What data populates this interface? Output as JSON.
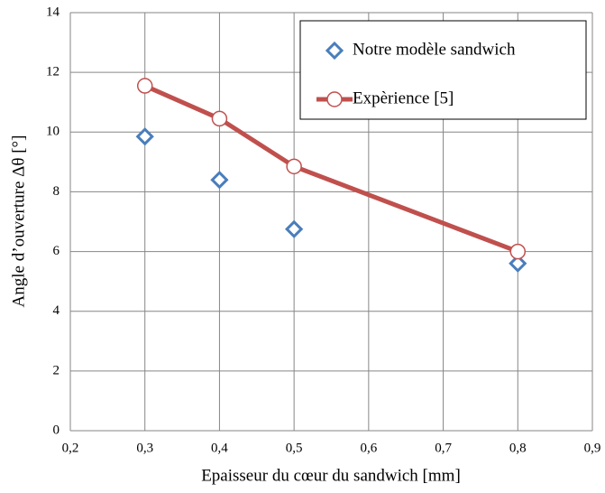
{
  "chart_data": {
    "type": "scatter",
    "x_label": "Epaisseur du cœur du sandwich  [mm]",
    "y_label": "Angle d’ouverture Δθ [°]",
    "x": [
      0.3,
      0.4,
      0.5,
      0.8
    ],
    "series": [
      {
        "name": "Notre modèle sandwich",
        "color": "#4a7ebb",
        "marker": "diamond",
        "line": false,
        "values": [
          9.85,
          8.4,
          6.75,
          5.6
        ]
      },
      {
        "name": "Expèrience [5]",
        "color": "#c0504d",
        "marker": "circle",
        "line": true,
        "values": [
          11.55,
          10.45,
          8.85,
          6.0
        ]
      }
    ],
    "xlim": [
      0.2,
      0.9
    ],
    "xticks": [
      {
        "value": 0.2,
        "label": "0,2"
      },
      {
        "value": 0.3,
        "label": "0,3"
      },
      {
        "value": 0.4,
        "label": "0,4"
      },
      {
        "value": 0.5,
        "label": "0,5"
      },
      {
        "value": 0.6,
        "label": "0,6"
      },
      {
        "value": 0.7,
        "label": "0,7"
      },
      {
        "value": 0.8,
        "label": "0,8"
      },
      {
        "value": 0.9,
        "label": "0,9"
      }
    ],
    "ylim": [
      0,
      14
    ],
    "yticks": [
      0,
      2,
      4,
      6,
      8,
      10,
      12,
      14
    ],
    "grid": true
  }
}
